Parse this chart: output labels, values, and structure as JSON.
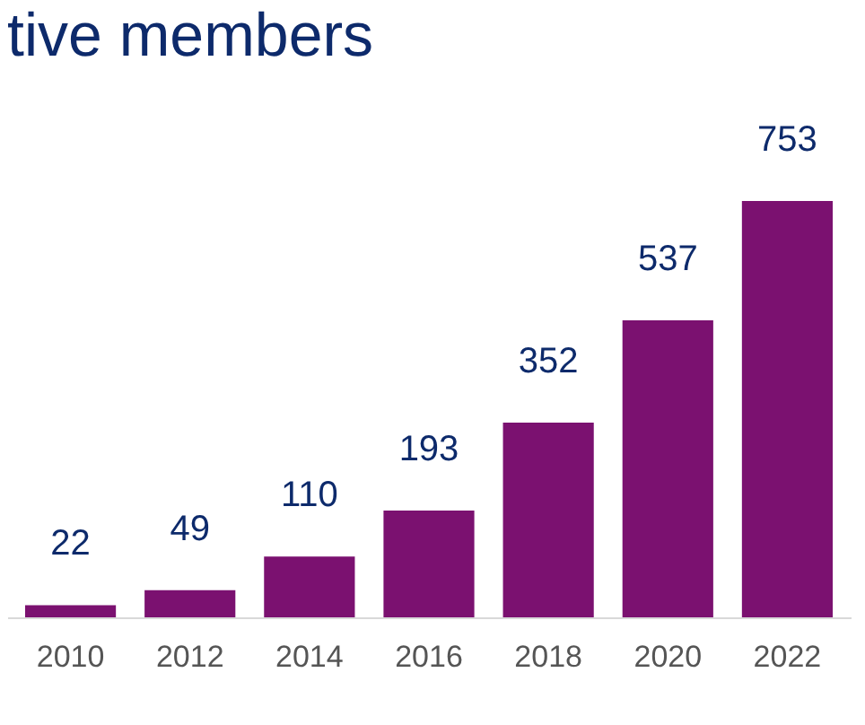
{
  "chart_data": {
    "type": "bar",
    "title": "tive members",
    "categories": [
      "2010",
      "2012",
      "2014",
      "2016",
      "2018",
      "2020",
      "2022"
    ],
    "values": [
      22,
      49,
      110,
      193,
      352,
      537,
      753
    ],
    "color": "#7b1170",
    "data_labels": true,
    "grid": false
  }
}
